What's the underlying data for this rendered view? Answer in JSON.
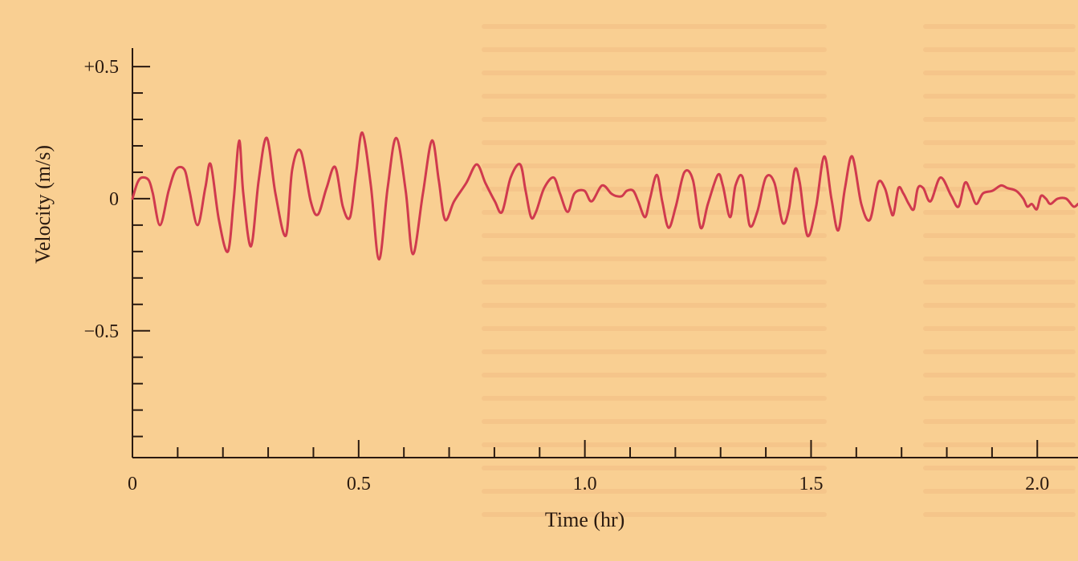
{
  "chart_data": {
    "type": "line",
    "xlabel": "Time (hr)",
    "ylabel": "Velocity (m/s)",
    "xlim": [
      0,
      2.09
    ],
    "ylim": [
      -0.98,
      0.57
    ],
    "x_ticks": [
      0,
      0.5,
      1.0,
      1.5,
      2.0
    ],
    "x_tick_labels": [
      "0",
      "0.5",
      "1.0",
      "1.5",
      "2.0"
    ],
    "x_minor_step": 0.1,
    "y_ticks": [
      0.5,
      0,
      -0.5
    ],
    "y_tick_labels": [
      "+0.5",
      "0",
      "−0.5"
    ],
    "y_minor_step": 0.1,
    "grid": false,
    "line_color": "#d03a4e",
    "series": [
      {
        "x": [
          0.0,
          0.011,
          0.021,
          0.036,
          0.045,
          0.061,
          0.08,
          0.096,
          0.115,
          0.126,
          0.144,
          0.161,
          0.173,
          0.191,
          0.211,
          0.224,
          0.236,
          0.245,
          0.262,
          0.279,
          0.297,
          0.316,
          0.339,
          0.353,
          0.372,
          0.394,
          0.41,
          0.429,
          0.448,
          0.465,
          0.481,
          0.494,
          0.508,
          0.527,
          0.545,
          0.564,
          0.583,
          0.604,
          0.62,
          0.642,
          0.662,
          0.677,
          0.691,
          0.711,
          0.738,
          0.761,
          0.78,
          0.801,
          0.817,
          0.836,
          0.857,
          0.869,
          0.881,
          0.892,
          0.91,
          0.931,
          0.945,
          0.962,
          0.977,
          0.999,
          1.015,
          1.038,
          1.058,
          1.069,
          1.082,
          1.093,
          1.107,
          1.118,
          1.133,
          1.144,
          1.159,
          1.171,
          1.185,
          1.201,
          1.22,
          1.239,
          1.256,
          1.272,
          1.294,
          1.305,
          1.321,
          1.333,
          1.349,
          1.364,
          1.381,
          1.4,
          1.419,
          1.437,
          1.451,
          1.464,
          1.475,
          1.492,
          1.511,
          1.529,
          1.545,
          1.56,
          1.575,
          1.591,
          1.611,
          1.63,
          1.648,
          1.663,
          1.674,
          1.682,
          1.693,
          1.704,
          1.716,
          1.727,
          1.736,
          1.748,
          1.764,
          1.786,
          1.81,
          1.826,
          1.84,
          1.852,
          1.865,
          1.88,
          1.901,
          1.92,
          1.934,
          1.953,
          1.969,
          1.978,
          1.988,
          1.999,
          2.008,
          2.019,
          2.029,
          2.045,
          2.064,
          2.08,
          2.09
        ],
        "y": [
          0.0,
          0.06,
          0.08,
          0.07,
          0.02,
          -0.1,
          0.03,
          0.11,
          0.11,
          0.03,
          -0.1,
          0.04,
          0.13,
          -0.08,
          -0.2,
          0.0,
          0.22,
          0.02,
          -0.18,
          0.07,
          0.23,
          0.02,
          -0.14,
          0.11,
          0.18,
          -0.01,
          -0.06,
          0.04,
          0.12,
          -0.03,
          -0.07,
          0.09,
          0.25,
          0.05,
          -0.23,
          0.04,
          0.23,
          0.03,
          -0.21,
          0.02,
          0.22,
          0.07,
          -0.08,
          -0.01,
          0.06,
          0.13,
          0.06,
          -0.01,
          -0.05,
          0.08,
          0.13,
          0.03,
          -0.07,
          -0.05,
          0.04,
          0.08,
          0.02,
          -0.05,
          0.02,
          0.03,
          -0.01,
          0.05,
          0.02,
          0.01,
          0.01,
          0.03,
          0.03,
          -0.01,
          -0.07,
          0.0,
          0.09,
          -0.01,
          -0.11,
          -0.03,
          0.1,
          0.07,
          -0.11,
          -0.02,
          0.09,
          0.05,
          -0.07,
          0.05,
          0.08,
          -0.1,
          -0.05,
          0.08,
          0.06,
          -0.09,
          -0.04,
          0.11,
          0.06,
          -0.14,
          -0.03,
          0.16,
          0.0,
          -0.12,
          0.04,
          0.16,
          -0.02,
          -0.08,
          0.06,
          0.04,
          -0.03,
          -0.06,
          0.04,
          0.02,
          -0.02,
          -0.04,
          0.04,
          0.04,
          -0.01,
          0.08,
          0.01,
          -0.03,
          0.06,
          0.03,
          -0.02,
          0.02,
          0.03,
          0.05,
          0.04,
          0.03,
          0.0,
          -0.03,
          -0.02,
          -0.04,
          0.01,
          0.0,
          -0.02,
          0.0,
          0.0,
          -0.03,
          -0.02
        ]
      }
    ]
  }
}
